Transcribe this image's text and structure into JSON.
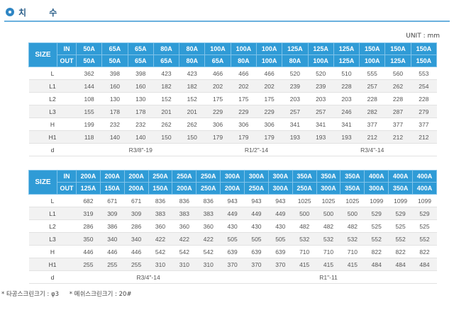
{
  "header": {
    "title": "치 수"
  },
  "unit": "UNIT : mm",
  "table1": {
    "size_label": "SIZE",
    "in_label": "IN",
    "out_label": "OUT",
    "in": [
      "50A",
      "65A",
      "65A",
      "80A",
      "80A",
      "100A",
      "100A",
      "100A",
      "125A",
      "125A",
      "125A",
      "150A",
      "150A",
      "150A"
    ],
    "out": [
      "50A",
      "50A",
      "65A",
      "65A",
      "80A",
      "65A",
      "80A",
      "100A",
      "80A",
      "100A",
      "125A",
      "100A",
      "125A",
      "150A"
    ],
    "rows": [
      {
        "label": "L",
        "values": [
          "362",
          "398",
          "398",
          "423",
          "423",
          "466",
          "466",
          "466",
          "520",
          "520",
          "510",
          "555",
          "560",
          "553"
        ]
      },
      {
        "label": "L1",
        "values": [
          "144",
          "160",
          "160",
          "182",
          "182",
          "202",
          "202",
          "202",
          "239",
          "239",
          "228",
          "257",
          "262",
          "254"
        ]
      },
      {
        "label": "L2",
        "values": [
          "108",
          "130",
          "130",
          "152",
          "152",
          "175",
          "175",
          "175",
          "203",
          "203",
          "203",
          "228",
          "228",
          "228"
        ]
      },
      {
        "label": "L3",
        "values": [
          "155",
          "178",
          "178",
          "201",
          "201",
          "229",
          "229",
          "229",
          "257",
          "257",
          "246",
          "282",
          "287",
          "279"
        ]
      },
      {
        "label": "H",
        "values": [
          "199",
          "232",
          "232",
          "262",
          "262",
          "306",
          "306",
          "306",
          "341",
          "341",
          "341",
          "377",
          "377",
          "377"
        ]
      },
      {
        "label": "H1",
        "values": [
          "118",
          "140",
          "140",
          "150",
          "150",
          "179",
          "179",
          "179",
          "193",
          "193",
          "193",
          "212",
          "212",
          "212"
        ]
      }
    ],
    "d_label": "d",
    "d_groups": [
      {
        "span": 5,
        "value": "R3/8\"-19"
      },
      {
        "span": 4,
        "value": "R1/2\"-14"
      },
      {
        "span": 5,
        "value": "R3/4\"-14"
      }
    ]
  },
  "table2": {
    "size_label": "SIZE",
    "in_label": "IN",
    "out_label": "OUT",
    "in": [
      "200A",
      "200A",
      "200A",
      "250A",
      "250A",
      "250A",
      "300A",
      "300A",
      "300A",
      "350A",
      "350A",
      "350A",
      "400A",
      "400A",
      "400A"
    ],
    "out": [
      "125A",
      "150A",
      "200A",
      "150A",
      "200A",
      "250A",
      "200A",
      "250A",
      "300A",
      "250A",
      "300A",
      "350A",
      "300A",
      "350A",
      "400A"
    ],
    "rows": [
      {
        "label": "L",
        "values": [
          "682",
          "671",
          "671",
          "836",
          "836",
          "836",
          "943",
          "943",
          "943",
          "1025",
          "1025",
          "1025",
          "1099",
          "1099",
          "1099"
        ]
      },
      {
        "label": "L1",
        "values": [
          "319",
          "309",
          "309",
          "383",
          "383",
          "383",
          "449",
          "449",
          "449",
          "500",
          "500",
          "500",
          "529",
          "529",
          "529"
        ]
      },
      {
        "label": "L2",
        "values": [
          "286",
          "386",
          "286",
          "360",
          "360",
          "360",
          "430",
          "430",
          "430",
          "482",
          "482",
          "482",
          "525",
          "525",
          "525"
        ]
      },
      {
        "label": "L3",
        "values": [
          "350",
          "340",
          "340",
          "422",
          "422",
          "422",
          "505",
          "505",
          "505",
          "532",
          "532",
          "532",
          "552",
          "552",
          "552"
        ]
      },
      {
        "label": "H",
        "values": [
          "446",
          "446",
          "446",
          "542",
          "542",
          "542",
          "639",
          "639",
          "639",
          "710",
          "710",
          "710",
          "822",
          "822",
          "822"
        ]
      },
      {
        "label": "H1",
        "values": [
          "255",
          "255",
          "255",
          "310",
          "310",
          "310",
          "370",
          "370",
          "370",
          "415",
          "415",
          "415",
          "484",
          "484",
          "484"
        ]
      }
    ],
    "d_label": "d",
    "d_groups": [
      {
        "span": 6,
        "value": "R3/4\"-14"
      },
      {
        "span": 9,
        "value": "R1\"-11"
      }
    ]
  },
  "notes": [
    "* 타공스크린크기 : φ3",
    "* 메쉬스크린크기 : 20#"
  ]
}
